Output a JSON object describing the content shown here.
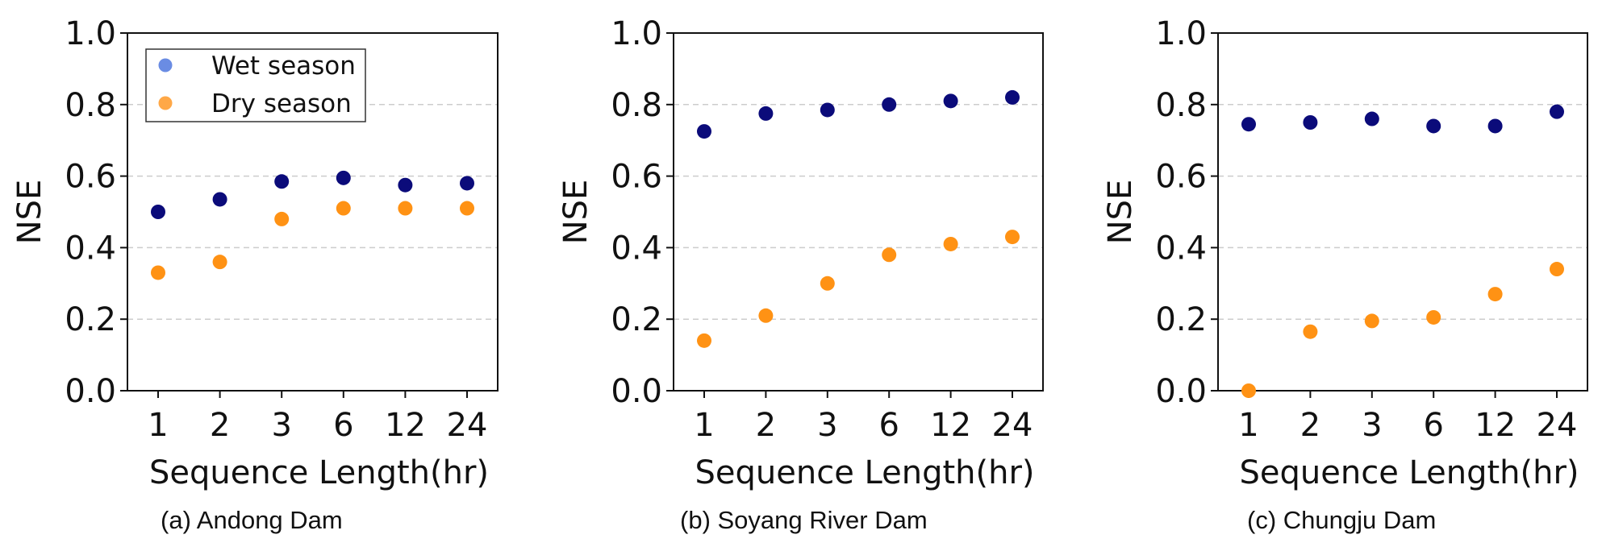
{
  "chart_data": [
    {
      "type": "scatter",
      "caption": "(a) Andong Dam",
      "categories": [
        "1",
        "2",
        "3",
        "6",
        "12",
        "24"
      ],
      "xlabel": "Sequence Length(hr)",
      "ylabel": "NSE",
      "ylim": [
        0,
        1.0
      ],
      "yticks": [
        "0.0",
        "0.2",
        "0.4",
        "0.6",
        "0.8",
        "1.0"
      ],
      "grid": "y-dashed",
      "legend": {
        "placement": "upper-left",
        "entries": [
          "Wet season",
          "Dry season"
        ]
      },
      "series": [
        {
          "name": "Wet season",
          "values": [
            0.5,
            0.535,
            0.585,
            0.595,
            0.575,
            0.58
          ]
        },
        {
          "name": "Dry season",
          "values": [
            0.33,
            0.36,
            0.48,
            0.51,
            0.51,
            0.51
          ]
        }
      ]
    },
    {
      "type": "scatter",
      "caption": "(b) Soyang River Dam",
      "categories": [
        "1",
        "2",
        "3",
        "6",
        "12",
        "24"
      ],
      "xlabel": "Sequence Length(hr)",
      "ylabel": "NSE",
      "ylim": [
        0,
        1.0
      ],
      "yticks": [
        "0.0",
        "0.2",
        "0.4",
        "0.6",
        "0.8",
        "1.0"
      ],
      "grid": "y-dashed",
      "series": [
        {
          "name": "Wet season",
          "values": [
            0.725,
            0.775,
            0.785,
            0.8,
            0.81,
            0.82
          ]
        },
        {
          "name": "Dry season",
          "values": [
            0.14,
            0.21,
            0.3,
            0.38,
            0.41,
            0.43
          ]
        }
      ]
    },
    {
      "type": "scatter",
      "caption": "(c) Chungju Dam",
      "categories": [
        "1",
        "2",
        "3",
        "6",
        "12",
        "24"
      ],
      "xlabel": "Sequence Length(hr)",
      "ylabel": "NSE",
      "ylim": [
        0,
        1.0
      ],
      "yticks": [
        "0.0",
        "0.2",
        "0.4",
        "0.6",
        "0.8",
        "1.0"
      ],
      "grid": "y-dashed",
      "series": [
        {
          "name": "Wet season",
          "values": [
            0.745,
            0.75,
            0.76,
            0.74,
            0.74,
            0.78
          ]
        },
        {
          "name": "Dry season",
          "values": [
            0.0,
            0.165,
            0.195,
            0.205,
            0.27,
            0.34
          ]
        }
      ]
    }
  ],
  "colors": {
    "wet_marker": "#0b0b7a",
    "dry_marker": "#ff9214",
    "legend_wet": "#5a7fe0",
    "legend_dry": "#ff9f33"
  }
}
